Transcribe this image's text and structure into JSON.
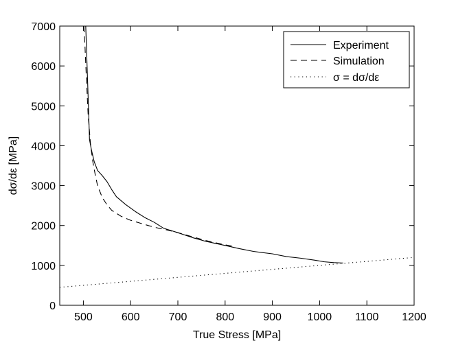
{
  "chart_data": {
    "type": "line",
    "title": "",
    "xlabel": "True Stress [MPa]",
    "ylabel": "dσ/dε [MPa]",
    "xlim": [
      450,
      1200
    ],
    "ylim": [
      0,
      7000
    ],
    "x_ticks": [
      500,
      600,
      700,
      800,
      900,
      1000,
      1100,
      1200
    ],
    "y_ticks": [
      0,
      1000,
      2000,
      3000,
      4000,
      5000,
      6000,
      7000
    ],
    "grid": false,
    "legend_position": "top-right",
    "series": [
      {
        "name": "Experiment",
        "style": "solid",
        "color": "#000000",
        "x": [
          505,
          507,
          509,
          511,
          513,
          517,
          523,
          530,
          540,
          550,
          560,
          570,
          590,
          610,
          630,
          650,
          670,
          700,
          730,
          760,
          800,
          830,
          860,
          900,
          930,
          960,
          990,
          1010,
          1030,
          1050
        ],
        "y": [
          7000,
          6300,
          5600,
          4900,
          4150,
          3900,
          3600,
          3380,
          3250,
          3100,
          2900,
          2720,
          2520,
          2350,
          2200,
          2080,
          1930,
          1820,
          1700,
          1600,
          1500,
          1420,
          1350,
          1290,
          1220,
          1180,
          1130,
          1090,
          1070,
          1060
        ]
      },
      {
        "name": "Simulation",
        "style": "dashed",
        "color": "#000000",
        "x": [
          501,
          503,
          506,
          510,
          515,
          520,
          525,
          530,
          540,
          550,
          560,
          580,
          600,
          620,
          640,
          660,
          680,
          700,
          730,
          760,
          790,
          820
        ],
        "y": [
          7000,
          6600,
          5800,
          4800,
          4050,
          3600,
          3280,
          3000,
          2700,
          2520,
          2380,
          2230,
          2130,
          2060,
          1990,
          1930,
          1880,
          1820,
          1720,
          1620,
          1540,
          1470
        ]
      },
      {
        "name": "σ = dσ/dε",
        "style": "dotted",
        "color": "#000000",
        "x": [
          450,
          1200
        ],
        "y": [
          450,
          1200
        ]
      }
    ]
  }
}
